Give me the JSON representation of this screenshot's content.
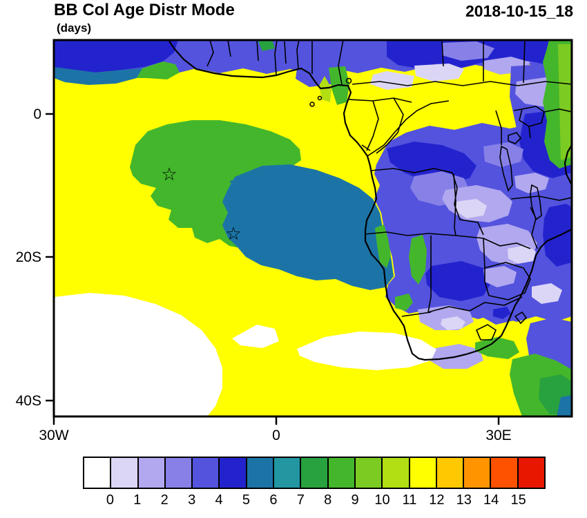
{
  "header": {
    "title": "BB Col Age Distr Mode",
    "units": "(days)",
    "date": "2018-10-15_18"
  },
  "map": {
    "y_axis_labels": [
      "0",
      "20S",
      "40S"
    ],
    "x_axis_labels": [
      "30W",
      "0",
      "30E"
    ],
    "star_symbol": "☆"
  },
  "colorbar": {
    "labels": [
      "0",
      "1",
      "2",
      "3",
      "4",
      "5",
      "6",
      "7",
      "8",
      "9",
      "10",
      "11",
      "12",
      "13",
      "14",
      "15"
    ],
    "colors": [
      "#FFFFFF",
      "#DCD6F6",
      "#B1A8EF",
      "#8781E7",
      "#5353DE",
      "#2323CE",
      "#1C74A6",
      "#2297A2",
      "#28A23E",
      "#44B62C",
      "#7CCB22",
      "#B2DE14",
      "#FFFF00",
      "#FFC800",
      "#FF9400",
      "#FF5200",
      "#E81800"
    ]
  }
}
